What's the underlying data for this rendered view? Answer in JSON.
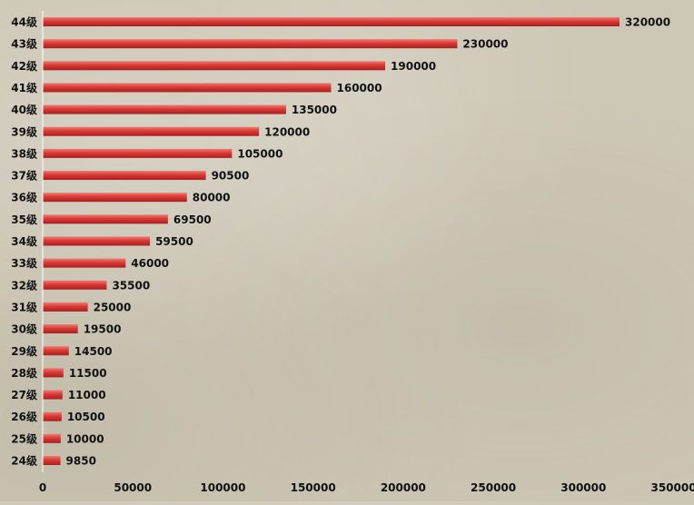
{
  "chart_data": {
    "type": "bar",
    "orientation": "horizontal",
    "title": "",
    "xlabel": "",
    "ylabel": "",
    "categories": [
      "24级",
      "25级",
      "26级",
      "27级",
      "28级",
      "29级",
      "30级",
      "31级",
      "32级",
      "33级",
      "34级",
      "35级",
      "36级",
      "37级",
      "38级",
      "39级",
      "40级",
      "41级",
      "42级",
      "43级",
      "44级"
    ],
    "values": [
      9850,
      10000,
      10500,
      11000,
      11500,
      14500,
      19500,
      25000,
      35500,
      46000,
      59500,
      69500,
      80000,
      90500,
      105000,
      120000,
      135000,
      160000,
      190000,
      230000,
      320000
    ],
    "xlim": [
      0,
      350000
    ],
    "xticks": [
      0,
      50000,
      100000,
      150000,
      200000,
      250000,
      300000,
      350000
    ],
    "data_labels": true,
    "grid": false,
    "legend": "none"
  },
  "colors": {
    "bar": "#d93a36",
    "bar_dark": "#a91f1f",
    "bar_light": "#f07a72",
    "axis": "#ffffff"
  }
}
